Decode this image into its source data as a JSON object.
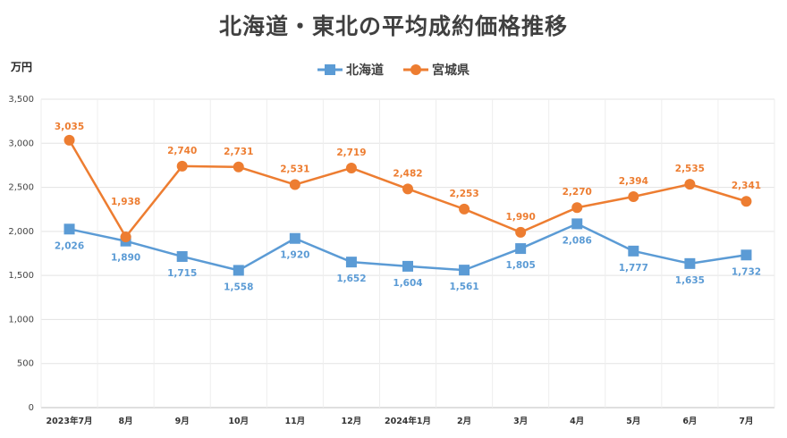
{
  "chart_data": {
    "type": "line",
    "title": "北海道・東北の平均成約価格推移",
    "unit_label": "万円",
    "categories": [
      "2023年7月",
      "8月",
      "9月",
      "10月",
      "11月",
      "12月",
      "2024年1月",
      "2月",
      "3月",
      "4月",
      "5月",
      "6月",
      "7月"
    ],
    "yticks": [
      0,
      500,
      1000,
      1500,
      2000,
      2500,
      3000,
      3500
    ],
    "ylim": [
      0,
      3500
    ],
    "grid": "vertical+horizontal",
    "legend_position": "top-center",
    "series": [
      {
        "name": "北海道",
        "color": "#5b9bd5",
        "marker": "square",
        "values": [
          2026,
          1890,
          1715,
          1558,
          1920,
          1652,
          1604,
          1561,
          1805,
          2086,
          1777,
          1635,
          1732
        ],
        "labels": [
          "2,026",
          "1,890",
          "1,715",
          "1,558",
          "1,920",
          "1,652",
          "1,604",
          "1,561",
          "1,805",
          "2,086",
          "1,777",
          "1,635",
          "1,732"
        ]
      },
      {
        "name": "宮城県",
        "color": "#ed7d31",
        "marker": "circle",
        "values": [
          3035,
          1938,
          2740,
          2731,
          2531,
          2719,
          2482,
          2253,
          1990,
          2270,
          2394,
          2535,
          2341
        ],
        "labels": [
          "3,035",
          "1,938",
          "2,740",
          "2,731",
          "2,531",
          "2,719",
          "2,482",
          "2,253",
          "1,990",
          "2,270",
          "2,394",
          "2,535",
          "2,341"
        ]
      }
    ]
  }
}
